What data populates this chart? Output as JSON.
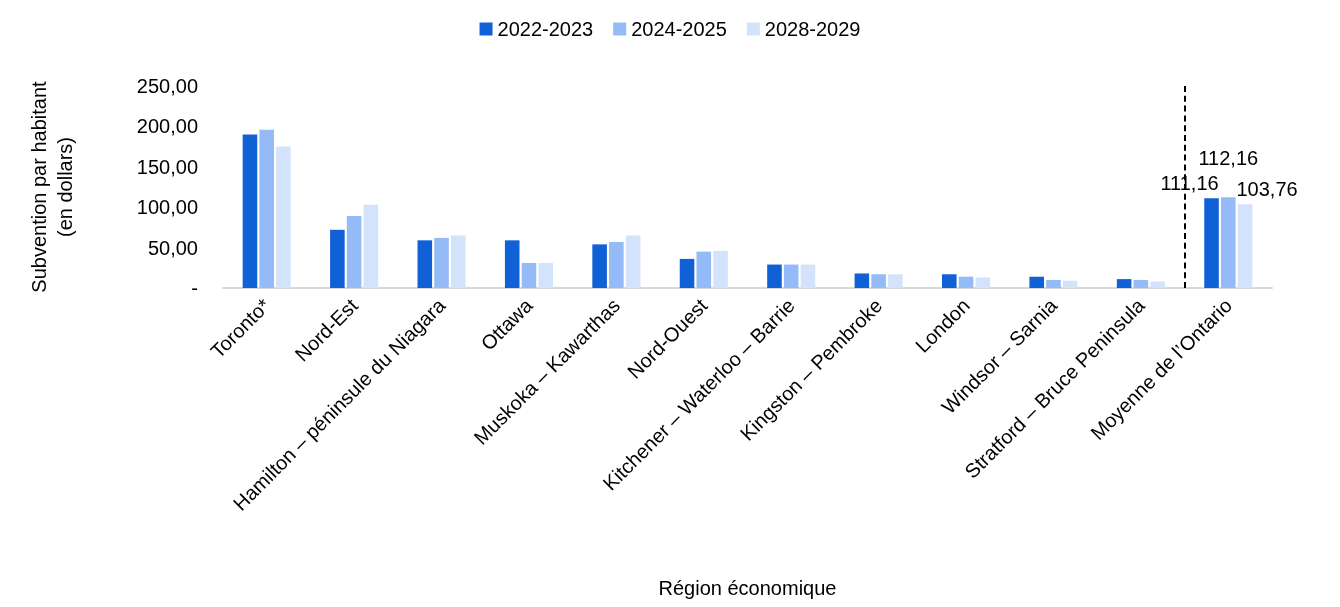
{
  "chart_data": {
    "type": "bar",
    "xlabel": "Région économique",
    "ylabel": "Subvention par habitant\n(en dollars)",
    "categories": [
      "Toronto*",
      "Nord-Est",
      "Hamilton – péninsule du Niagara",
      "Ottawa",
      "Muskoka – Kawarthas",
      "Nord-Ouest",
      "Kitchener – Waterloo – Barrie",
      "Kingston – Pembroke",
      "London",
      "Windsor – Sarnia",
      "Stratford – Bruce Peninsula",
      "Moyenne de l’Ontario"
    ],
    "series": [
      {
        "name": "2022-2023",
        "color": "#1060d6",
        "values": [
          190,
          72,
          59,
          59,
          54,
          36,
          29,
          18,
          17,
          14,
          11,
          111.16
        ],
        "value_labels": [
          null,
          null,
          null,
          null,
          null,
          null,
          null,
          null,
          null,
          null,
          null,
          "111,16"
        ]
      },
      {
        "name": "2024-2025",
        "color": "#94baf7",
        "values": [
          196,
          89,
          62,
          31,
          57,
          45,
          29,
          17,
          14,
          10,
          10,
          112.16
        ],
        "value_labels": [
          null,
          null,
          null,
          null,
          null,
          null,
          null,
          null,
          null,
          null,
          null,
          "112,16"
        ]
      },
      {
        "name": "2028-2029",
        "color": "#d3e3fc",
        "values": [
          175,
          103,
          65,
          31,
          65,
          46,
          29,
          17,
          13,
          9,
          8,
          103.76
        ],
        "value_labels": [
          null,
          null,
          null,
          null,
          null,
          null,
          null,
          null,
          null,
          null,
          null,
          "103,76"
        ]
      }
    ],
    "ylim": [
      0,
      250
    ],
    "yticks": [
      {
        "value": 0,
        "label": "-"
      },
      {
        "value": 50,
        "label": "50,00"
      },
      {
        "value": 100,
        "label": "100,00"
      },
      {
        "value": 150,
        "label": "150,00"
      },
      {
        "value": 200,
        "label": "200,00"
      },
      {
        "value": 250,
        "label": "250,00"
      }
    ],
    "grid": false,
    "legend": "top"
  }
}
